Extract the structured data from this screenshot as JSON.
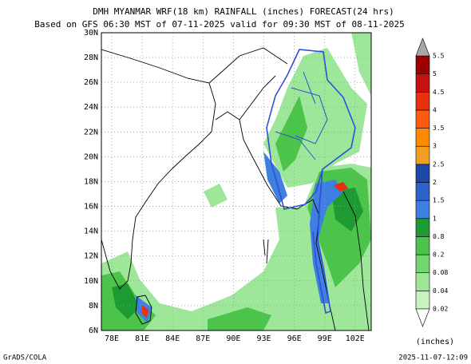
{
  "header": {
    "title": "DMH MYANMAR WRF(18 km) RAINFALL (inches) FORECAST(24 hrs)",
    "subtitle": "Based on GFS 06:30 MST of 07-11-2025 valid for 09:30 MST of 08-11-2025"
  },
  "map": {
    "lon_labels": [
      "78E",
      "81E",
      "84E",
      "87E",
      "90E",
      "93E",
      "96E",
      "99E",
      "102E"
    ],
    "lat_labels": [
      "30N",
      "28N",
      "26N",
      "24N",
      "22N",
      "20N",
      "18N",
      "16N",
      "14N",
      "12N",
      "10N",
      "8N",
      "6N"
    ]
  },
  "colorbar": {
    "levels": [
      0.02,
      0.04,
      0.08,
      0.2,
      0.8,
      1,
      1.5,
      2,
      2.5,
      3,
      3.5,
      4,
      4.5,
      5,
      5.5
    ],
    "colors": [
      "#c8f2c0",
      "#9ee69a",
      "#74d672",
      "#4cc44c",
      "#1e9a32",
      "#3f7fe0",
      "#2f63cc",
      "#1e48a8",
      "#f0a020",
      "#ff8a00",
      "#ff5a14",
      "#e8300c",
      "#c81010",
      "#9c0000"
    ],
    "units": "(inches)"
  },
  "footer": {
    "left": "GrADS/COLA",
    "right": "2025-11-07-12:09"
  }
}
